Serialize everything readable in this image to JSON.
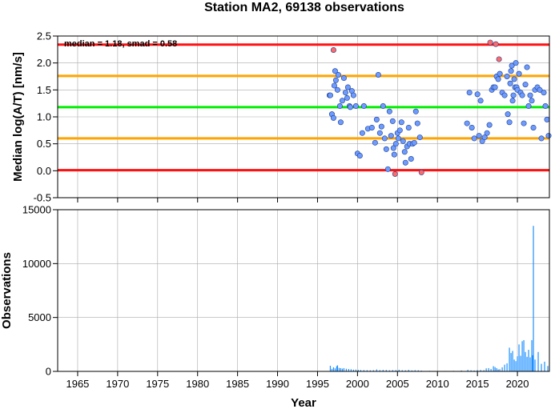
{
  "chart_data": [
    {
      "type": "scatter",
      "title": "Station MA2, 69138 observations",
      "xlabel": "",
      "ylabel": "Median log(A/T) [nm/s]",
      "xlim": [
        1962.5,
        2024
      ],
      "ylim": [
        -0.5,
        2.5
      ],
      "yticks": [
        "-0.5",
        "0.0",
        "0.5",
        "1.0",
        "1.5",
        "2.0",
        "2.5"
      ],
      "annotation": "median = 1.18, smad = 0.58",
      "grid": true,
      "reference_lines": [
        {
          "value": 2.34,
          "color": "#ff1010"
        },
        {
          "value": 1.76,
          "color": "#ffa500"
        },
        {
          "value": 1.18,
          "color": "#00ee00"
        },
        {
          "value": 0.6,
          "color": "#ffa500"
        },
        {
          "value": 0.01,
          "color": "#ff1010"
        }
      ],
      "series": [
        {
          "color": "#6f9bff",
          "x": [
            1996.5,
            1996.6,
            1996.8,
            1997.0,
            1997.1,
            1997.2,
            1997.3,
            1997.5,
            1997.6,
            1997.8,
            1997.9,
            1998.1,
            1998.3,
            1998.5,
            1998.7,
            1998.8,
            1999.0,
            1999.1,
            1999.3,
            1999.5,
            1999.8,
            2000.0,
            2000.3,
            2000.6,
            2000.8,
            2001.3,
            2001.8,
            2002.2,
            2002.4,
            2002.6,
            2002.8,
            2003.0,
            2003.2,
            2003.4,
            2003.6,
            2003.8,
            2004.0,
            2004.2,
            2004.4,
            2004.5,
            2004.6,
            2004.8,
            2005.0,
            2005.1,
            2005.3,
            2005.5,
            2005.7,
            2005.9,
            2006.0,
            2006.2,
            2006.4,
            2006.5,
            2006.7,
            2006.9,
            2007.1,
            2007.3,
            2007.5,
            2007.8,
            2013.7,
            2014.0,
            2014.3,
            2014.6,
            2015.0,
            2015.2,
            2015.4,
            2015.6,
            2015.9,
            2016.2,
            2016.5,
            2016.8,
            2017.0,
            2017.2,
            2017.4,
            2017.6,
            2017.8,
            2018.1,
            2018.4,
            2018.7,
            2018.8,
            2019.0,
            2019.1,
            2019.2,
            2019.3,
            2019.4,
            2019.5,
            2019.6,
            2019.7,
            2019.8,
            2019.9,
            2020.0,
            2020.2,
            2020.4,
            2020.6,
            2020.8,
            2021.0,
            2021.2,
            2021.4,
            2021.6,
            2021.8,
            2022.0,
            2022.2,
            2022.5,
            2022.8,
            2023.0,
            2023.3,
            2023.5,
            2023.7,
            2023.9
          ],
          "y": [
            1.4,
            1.4,
            1.05,
            0.98,
            1.58,
            1.85,
            1.68,
            1.5,
            1.78,
            1.2,
            0.9,
            1.3,
            1.72,
            1.45,
            1.35,
            1.55,
            1.2,
            1.18,
            1.48,
            1.4,
            1.2,
            0.32,
            0.28,
            0.7,
            1.2,
            0.78,
            0.8,
            0.52,
            0.95,
            1.78,
            0.7,
            0.82,
            1.2,
            0.6,
            0.4,
            0.03,
            1.1,
            0.65,
            0.92,
            0.42,
            0.3,
            0.5,
            0.7,
            0.6,
            0.75,
            0.9,
            0.55,
            0.35,
            0.15,
            0.45,
            0.8,
            0.5,
            0.22,
            0.5,
            0.52,
            1.1,
            0.88,
            0.62,
            0.88,
            1.45,
            0.8,
            0.6,
            1.42,
            0.65,
            1.3,
            0.55,
            0.62,
            0.7,
            0.85,
            1.5,
            1.55,
            1.55,
            1.75,
            1.7,
            1.8,
            1.45,
            1.4,
            1.75,
            1.05,
            0.9,
            1.62,
            1.85,
            1.95,
            1.3,
            1.4,
            1.7,
            1.55,
            2.0,
            1.55,
            1.5,
            1.8,
            1.45,
            1.4,
            0.88,
            1.6,
            1.92,
            1.2,
            1.4,
            1.3,
            0.8,
            1.5,
            1.55,
            1.5,
            0.6,
            1.45,
            1.2,
            0.95,
            0.65
          ]
        },
        {
          "color": "#ff6a6a",
          "x": [
            1997.0,
            2004.7,
            2008.0,
            2016.6,
            2017.3,
            2017.7
          ],
          "y": [
            2.24,
            -0.06,
            -0.03,
            2.38,
            2.35,
            2.07
          ]
        }
      ]
    },
    {
      "type": "bar",
      "xlabel": "Year",
      "ylabel": "Observations",
      "xlim": [
        1962.5,
        2024
      ],
      "ylim": [
        0,
        15000
      ],
      "xticks": [
        "1965",
        "1970",
        "1975",
        "1980",
        "1985",
        "1990",
        "1995",
        "2000",
        "2005",
        "2010",
        "2015",
        "2020"
      ],
      "yticks": [
        "0",
        "5000",
        "10000",
        "15000"
      ],
      "grid": true,
      "bar_color": "#1e90ff",
      "x": [
        1996.6,
        1996.8,
        1997.0,
        1997.2,
        1997.4,
        1997.5,
        1997.7,
        1997.9,
        1998.1,
        1998.3,
        1998.6,
        1998.9,
        1999.2,
        1999.5,
        1999.8,
        2000.1,
        2000.4,
        2000.8,
        2001.2,
        2001.6,
        2002.0,
        2002.4,
        2002.8,
        2003.2,
        2003.6,
        2004.0,
        2004.4,
        2004.8,
        2005.2,
        2005.6,
        2006.0,
        2006.4,
        2006.8,
        2007.2,
        2007.6,
        2008.0,
        2009.0,
        2010.0,
        2011.0,
        2012.0,
        2013.0,
        2013.8,
        2014.2,
        2014.6,
        2015.0,
        2015.4,
        2015.8,
        2016.1,
        2016.4,
        2016.7,
        2017.0,
        2017.2,
        2017.4,
        2017.6,
        2017.8,
        2018.1,
        2018.4,
        2018.7,
        2019.0,
        2019.2,
        2019.4,
        2019.6,
        2019.8,
        2020.0,
        2020.2,
        2020.4,
        2020.6,
        2020.8,
        2021.0,
        2021.2,
        2021.4,
        2021.6,
        2021.8,
        2021.9,
        2022.0,
        2022.2,
        2022.6,
        2023.0,
        2023.4,
        2023.8
      ],
      "values": [
        520,
        230,
        380,
        280,
        480,
        560,
        320,
        300,
        250,
        300,
        240,
        220,
        200,
        160,
        170,
        140,
        130,
        120,
        110,
        100,
        110,
        180,
        120,
        140,
        130,
        100,
        120,
        120,
        150,
        110,
        100,
        140,
        90,
        110,
        100,
        70,
        50,
        40,
        40,
        50,
        80,
        140,
        100,
        80,
        120,
        130,
        110,
        280,
        300,
        220,
        480,
        400,
        300,
        180,
        200,
        380,
        620,
        750,
        2200,
        1700,
        1900,
        1100,
        950,
        1400,
        2500,
        1450,
        2800,
        2900,
        1800,
        1350,
        2000,
        1300,
        2900,
        1500,
        13500,
        1100,
        1800,
        700,
        900,
        500
      ]
    }
  ]
}
